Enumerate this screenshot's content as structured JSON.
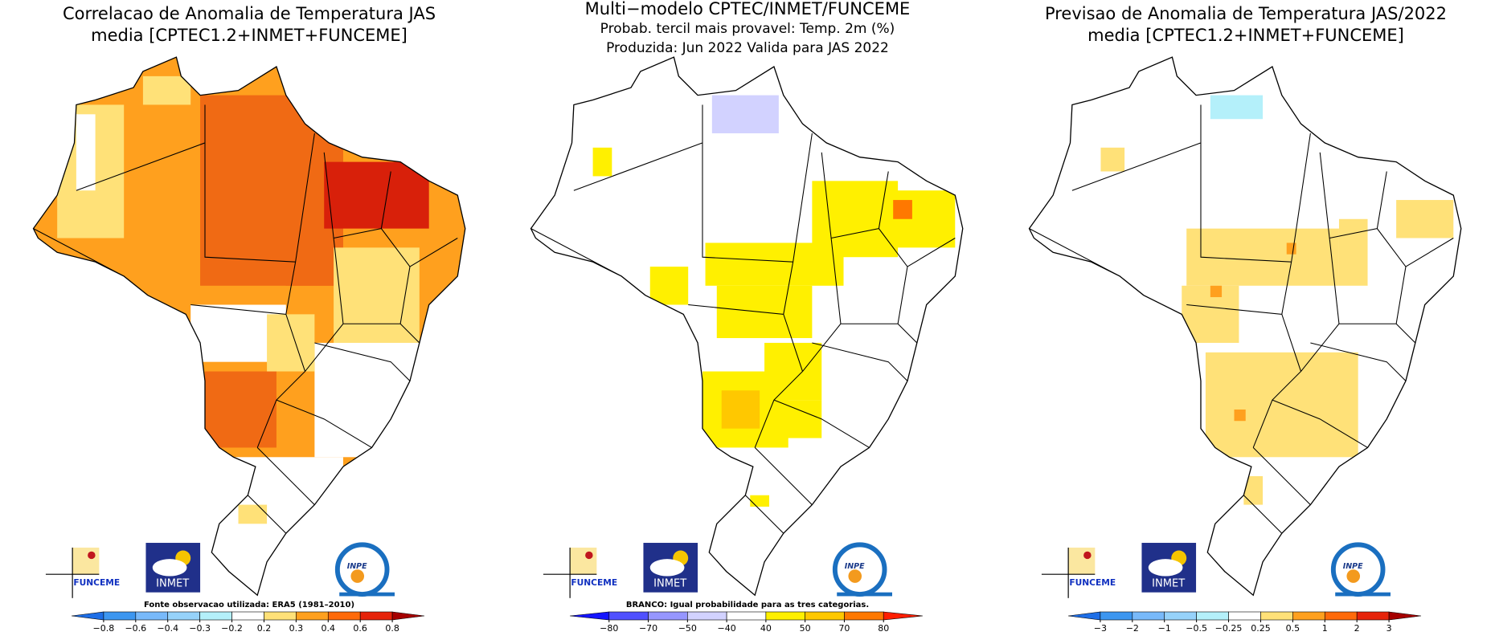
{
  "panels": [
    {
      "title": [
        "Correlacao de Anomalia de Temperatura JAS",
        "media [CPTEC1.2+INMET+FUNCEME]"
      ],
      "note": "Fonte observacao utilizada: ERA5 (1981–2010)",
      "logos": {
        "funceme": "FUNCEME",
        "inmet": "INMET",
        "inpe": "INPE"
      },
      "colorbar": {
        "ticks": [
          "−0.8",
          "−0.6",
          "−0.4",
          "−0.3",
          "−0.2",
          "0.2",
          "0.3",
          "0.4",
          "0.6",
          "0.8"
        ],
        "colors": [
          "#1e6ee6",
          "#3c96f0",
          "#78b9fa",
          "#96d2fa",
          "#b4f0fa",
          "#ffffff",
          "#ffe178",
          "#ffa01e",
          "#ff6a0a",
          "#e6230a",
          "#a50000"
        ]
      }
    },
    {
      "title": [
        "Multi−modelo CPTEC/INMET/FUNCEME",
        "Probab. tercil mais provavel: Temp. 2m (%)",
        "Produzida: Jun 2022  Valida para JAS 2022"
      ],
      "note": "BRANCO: Igual probabilidade para as tres categorias.",
      "logos": {
        "funceme": "FUNCEME",
        "inmet": "INMET",
        "inpe": "INPE"
      },
      "colorbar": {
        "ticks": [
          "−80",
          "−70",
          "−50",
          "−40",
          "40",
          "50",
          "70",
          "80"
        ],
        "colors": [
          "#1414ff",
          "#5050ff",
          "#9696ff",
          "#d2d2ff",
          "#ffffff",
          "#fff000",
          "#ffc800",
          "#ff7800",
          "#ff1e00"
        ]
      }
    },
    {
      "title": [
        "Previsao de Anomalia de Temperatura JAS/2022",
        "media [CPTEC1.2+INMET+FUNCEME]"
      ],
      "logos": {
        "funceme": "FUNCEME",
        "inmet": "INMET",
        "inpe": "INPE"
      },
      "colorbar": {
        "ticks": [
          "−3",
          "−2",
          "−1",
          "−0.5",
          "−0.25",
          "0.25",
          "0.5",
          "1",
          "2",
          "3"
        ],
        "colors": [
          "#1e6ee6",
          "#3c96f0",
          "#78b9fa",
          "#96d2fa",
          "#b4f0fa",
          "#ffffff",
          "#ffe178",
          "#ffa01e",
          "#ff6a0a",
          "#e6230a",
          "#a50000"
        ]
      }
    }
  ]
}
